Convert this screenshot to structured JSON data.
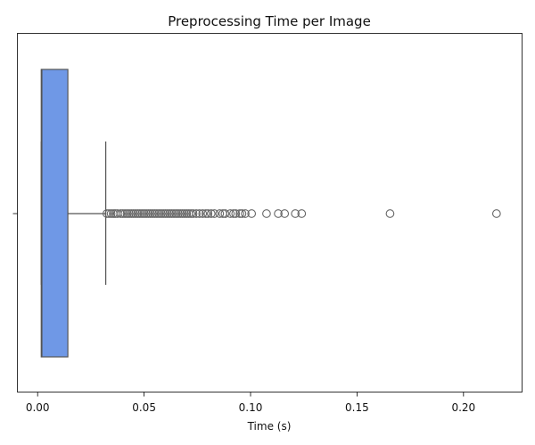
{
  "chart_data": {
    "type": "box",
    "orientation": "horizontal",
    "title": "Preprocessing Time per Image",
    "xlabel": "Time (s)",
    "ylabel": "",
    "xlim": [
      -0.0095,
      0.2275
    ],
    "x_ticks": [
      0.0,
      0.05,
      0.1,
      0.15,
      0.2
    ],
    "x_tick_labels": [
      "0.00",
      "0.05",
      "0.10",
      "0.15",
      "0.20"
    ],
    "grid": false,
    "box_color": "#6f98e6",
    "line_color": "#555555",
    "box": {
      "whisker_low": 0.0017,
      "q1": 0.0017,
      "median": 0.002,
      "q3": 0.0142,
      "whisker_high": 0.032
    },
    "outliers": [
      0.0325,
      0.0335,
      0.0345,
      0.0355,
      0.0365,
      0.0375,
      0.039,
      0.04,
      0.041,
      0.042,
      0.043,
      0.044,
      0.045,
      0.046,
      0.047,
      0.048,
      0.049,
      0.05,
      0.051,
      0.052,
      0.053,
      0.054,
      0.055,
      0.056,
      0.057,
      0.058,
      0.059,
      0.06,
      0.061,
      0.062,
      0.063,
      0.064,
      0.065,
      0.066,
      0.067,
      0.068,
      0.069,
      0.07,
      0.071,
      0.072,
      0.073,
      0.0745,
      0.076,
      0.0775,
      0.079,
      0.08,
      0.0815,
      0.083,
      0.0855,
      0.087,
      0.088,
      0.0905,
      0.092,
      0.093,
      0.095,
      0.096,
      0.0975,
      0.1005,
      0.1075,
      0.113,
      0.116,
      0.121,
      0.124,
      0.1655,
      0.2155
    ]
  }
}
